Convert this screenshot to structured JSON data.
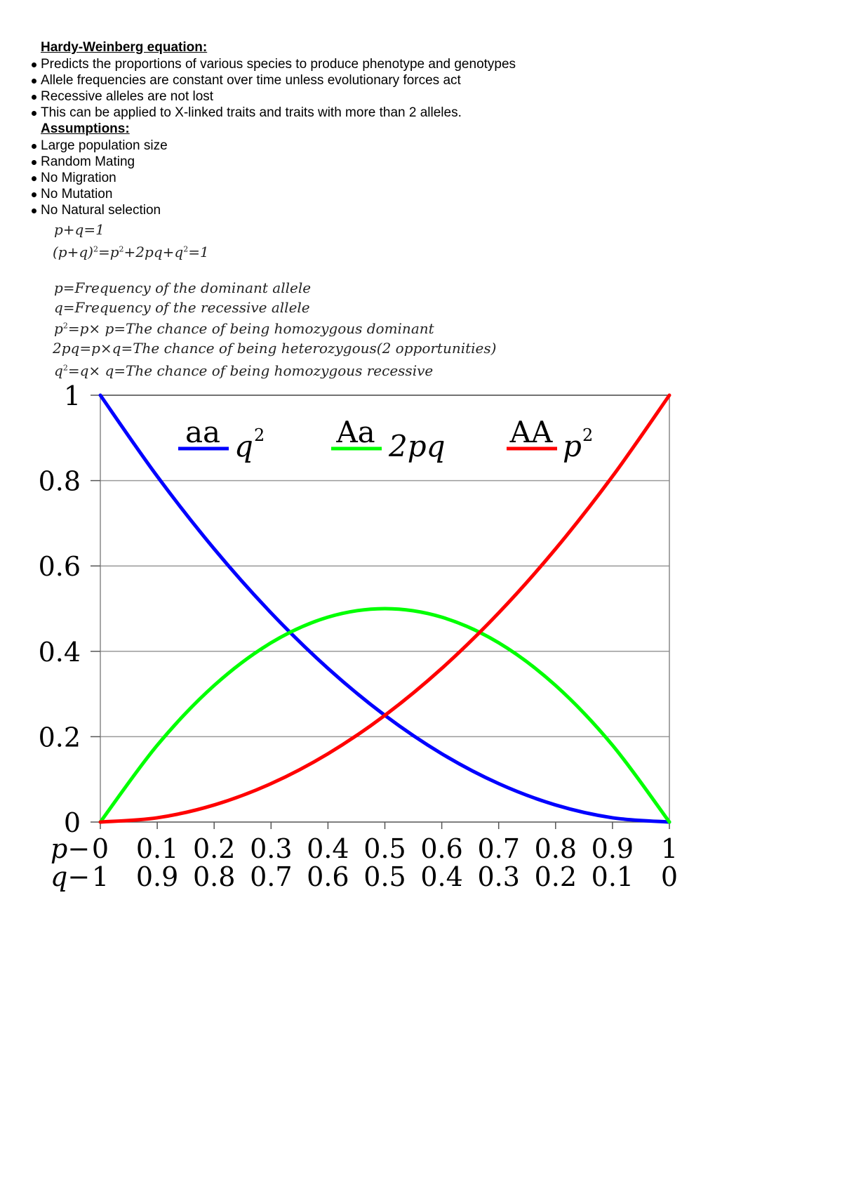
{
  "notes": {
    "heading": "Hardy-Weinberg equation:",
    "bullets": [
      "Predicts the proportions of various species to produce phenotype and genotypes",
      "Allele frequencies are constant over time unless evolutionary forces act",
      "Recessive alleles are not lost",
      "This can be applied to X-linked traits and traits with more than 2 alleles."
    ],
    "assumptions_heading": "Assumptions:",
    "assumptions": [
      "Large population size",
      "Random Mating",
      "No Migration",
      "No Mutation",
      "No Natural selection"
    ]
  },
  "equations": {
    "eq1": "p+q=1",
    "eq2_left": "(p+q)",
    "eq2_sup": "2",
    "eq2_mid": "=p",
    "eq2_mid_sup": "2",
    "eq2_mid2": "+2pq+q",
    "eq2_mid2_sup": "2",
    "eq2_right": "=1",
    "def_p": "p=Frequency of the dominant allele",
    "def_q": "q=Frequency of the recessive allele",
    "def_p2_a": "p",
    "def_p2_sup": "2",
    "def_p2_b": "=p× p=The chance of being homozygous dominant",
    "def_2pq": "2pq=p×q=The chance of being heterozygous(2 opportunities)",
    "def_q2_a": "q",
    "def_q2_sup": "2",
    "def_q2_b": "=q× q=The chance of being homozygous recessive"
  },
  "chart_data": {
    "type": "line",
    "x": [
      0,
      0.1,
      0.2,
      0.3,
      0.4,
      0.5,
      0.6,
      0.7,
      0.8,
      0.9,
      1
    ],
    "xlim": [
      0,
      1
    ],
    "ylim": [
      0,
      1
    ],
    "y_ticks": [
      "0",
      "0.2",
      "0.4",
      "0.6",
      "0.8",
      "1"
    ],
    "y_tick_values": [
      0,
      0.2,
      0.4,
      0.6,
      0.8,
      1
    ],
    "p_row_prefix": "p−",
    "p_ticks": [
      "0",
      "0.1",
      "0.2",
      "0.3",
      "0.4",
      "0.5",
      "0.6",
      "0.7",
      "0.8",
      "0.9",
      "1"
    ],
    "q_row_prefix": "q−",
    "q_ticks": [
      "1",
      "0.9",
      "0.8",
      "0.7",
      "0.6",
      "0.5",
      "0.4",
      "0.3",
      "0.2",
      "0.1",
      "0"
    ],
    "grid": true,
    "legend_placement": "top",
    "series": [
      {
        "name": "aa",
        "formula": "q",
        "formula_sup": "2",
        "color": "#0000ff",
        "values": [
          1,
          0.81,
          0.64,
          0.49,
          0.36,
          0.25,
          0.16,
          0.09,
          0.04,
          0.01,
          0
        ]
      },
      {
        "name": "Aa",
        "formula": "2pq",
        "formula_sup": "",
        "color": "#00ff00",
        "values": [
          0,
          0.18,
          0.32,
          0.42,
          0.48,
          0.5,
          0.48,
          0.42,
          0.32,
          0.18,
          0
        ]
      },
      {
        "name": "AA",
        "formula": "p",
        "formula_sup": "2",
        "color": "#ff0000",
        "values": [
          0,
          0.01,
          0.04,
          0.09,
          0.16,
          0.25,
          0.36,
          0.49,
          0.64,
          0.81,
          1
        ]
      }
    ]
  }
}
